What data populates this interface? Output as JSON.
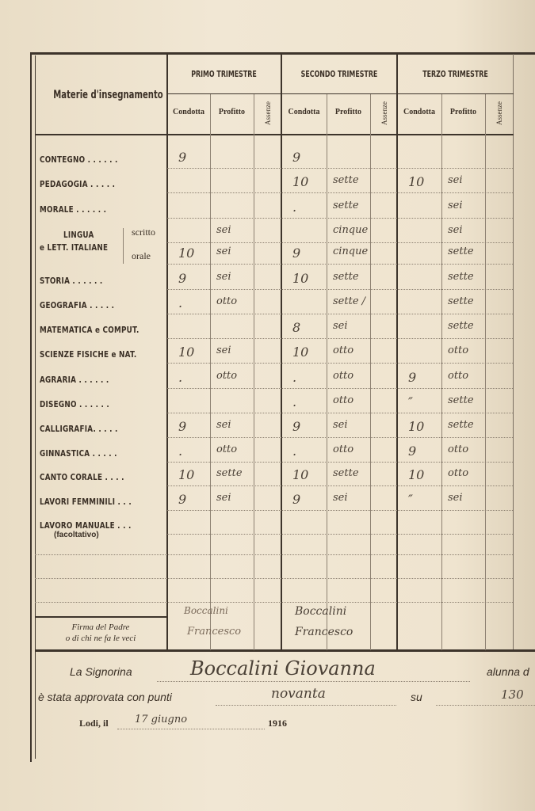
{
  "header": {
    "subject_title": "Materie d'insegnamento",
    "terms": [
      "PRIMO TRIMESTRE",
      "SECONDO TRIMESTRE",
      "TERZO TRIMESTRE"
    ],
    "sub_columns": [
      "Condotta",
      "Profitto",
      "Assenze"
    ]
  },
  "rows": [
    {
      "subject": "CONTEGNO . . . . . .",
      "marks": [
        "9",
        "",
        "9",
        "",
        "",
        ""
      ]
    },
    {
      "subject": "PEDAGOGIA . . . . .",
      "marks": [
        "",
        "",
        "10",
        "sette",
        "10",
        "sei"
      ]
    },
    {
      "subject": "MORALE . . . . . .",
      "marks": [
        "",
        "",
        ".",
        "sette",
        "",
        "sei"
      ]
    },
    {
      "subject": "",
      "marks": [
        "",
        "sei",
        "",
        "cinque",
        "",
        "sei"
      ]
    },
    {
      "subject": "",
      "marks": [
        "10",
        "sei",
        "9",
        "cinque",
        "",
        "sette"
      ]
    },
    {
      "subject": "STORIA . . . . . .",
      "marks": [
        "9",
        "sei",
        "10",
        "sette",
        "",
        "sette"
      ]
    },
    {
      "subject": "GEOGRAFIA . . . . .",
      "marks": [
        ".",
        "otto",
        "",
        "sette /",
        "",
        "sette"
      ]
    },
    {
      "subject": "MATEMATICA e COMPUT.",
      "marks": [
        "",
        "",
        "8",
        "sei",
        "",
        "sette"
      ]
    },
    {
      "subject": "SCIENZE FISICHE e NAT.",
      "marks": [
        "10",
        "sei",
        "10",
        "otto",
        "",
        "otto"
      ]
    },
    {
      "subject": "AGRARIA . . . . . .",
      "marks": [
        ".",
        "otto",
        ".",
        "otto",
        "9",
        "otto"
      ]
    },
    {
      "subject": "DISEGNO . . . . . .",
      "marks": [
        "",
        "",
        ".",
        "otto",
        "″",
        "sette"
      ]
    },
    {
      "subject": "CALLIGRAFIA. . . . .",
      "marks": [
        "9",
        "sei",
        "9",
        "sei",
        "10",
        "sette"
      ]
    },
    {
      "subject": "GINNASTICA . . . . .",
      "marks": [
        ".",
        "otto",
        ".",
        "otto",
        "9",
        "otto"
      ]
    },
    {
      "subject": "CANTO CORALE . . . .",
      "marks": [
        "10",
        "sette",
        "10",
        "sette",
        "10",
        "otto"
      ]
    },
    {
      "subject": "LAVORI FEMMINILI . . .",
      "marks": [
        "9",
        "sei",
        "9",
        "sei",
        "″",
        "sei"
      ]
    },
    {
      "subject": "LAVORO MANUALE . . .",
      "marks": [
        "",
        "",
        "",
        "",
        "",
        ""
      ]
    }
  ],
  "lingua": {
    "line1": "LINGUA",
    "line2": "e LETT. ITALIANE",
    "scritto": "scritto",
    "orale": "orale"
  },
  "lavoro_note": "(facoltativo)",
  "signature": {
    "label1": "Firma del Padre",
    "label2": "o di chi ne fa le veci",
    "primo": [
      "Boccalini",
      "Francesco"
    ],
    "secondo": [
      "Boccalini",
      "Francesco"
    ]
  },
  "footer": {
    "signorina_label": "La Signorina",
    "student_name": "Boccalini Giovanna",
    "alunna_label": "alunna d",
    "approved_label": "è stata approvata con punti",
    "points": "novanta",
    "su_label": "su",
    "total": "130",
    "place_label": "Lodi, il",
    "date": "17 giugno",
    "year": "1916"
  }
}
